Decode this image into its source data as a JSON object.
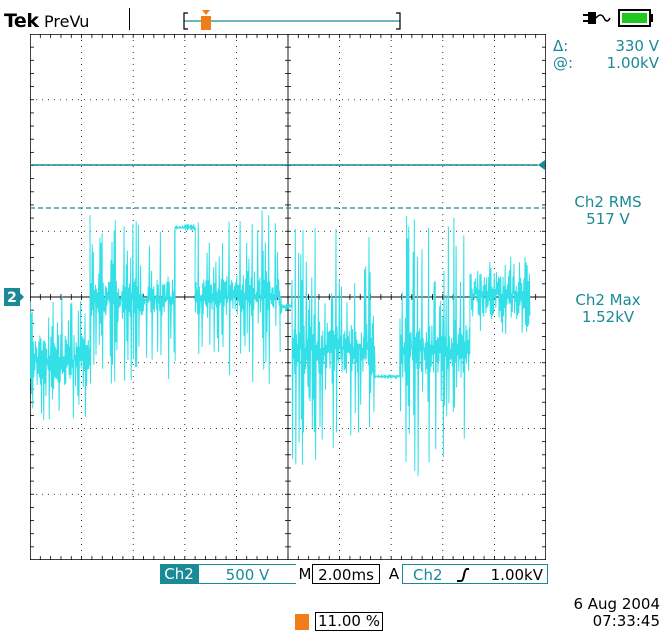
{
  "header": {
    "brand": "Tek",
    "mode": "PreVu"
  },
  "cursor_readout": {
    "delta_label": "Δ:",
    "delta_value": "330 V",
    "at_label": "@:",
    "at_value": "1.00kV"
  },
  "channel_marker": "2",
  "measurements": {
    "rms_label": "Ch2 RMS",
    "rms_value": "517 V",
    "max_label": "Ch2 Max",
    "max_value": "1.52kV"
  },
  "status_bar": {
    "channel": "Ch2",
    "volts_per_div": "500 V",
    "timebase_prefix": "M",
    "timebase": "2.00ms",
    "trigger_mode": "A",
    "trigger_channel": "Ch2",
    "trigger_edge_icon": "rising-edge-icon",
    "trigger_level": "1.00kV"
  },
  "datetime": {
    "date": "6 Aug 2004",
    "time": "07:33:45"
  },
  "trigger_position": "11.00 %",
  "colors": {
    "trace": "#33e0e8",
    "accent": "#1a8a96",
    "trigger_marker": "#f07c1a",
    "battery": "#1ec81e"
  }
}
